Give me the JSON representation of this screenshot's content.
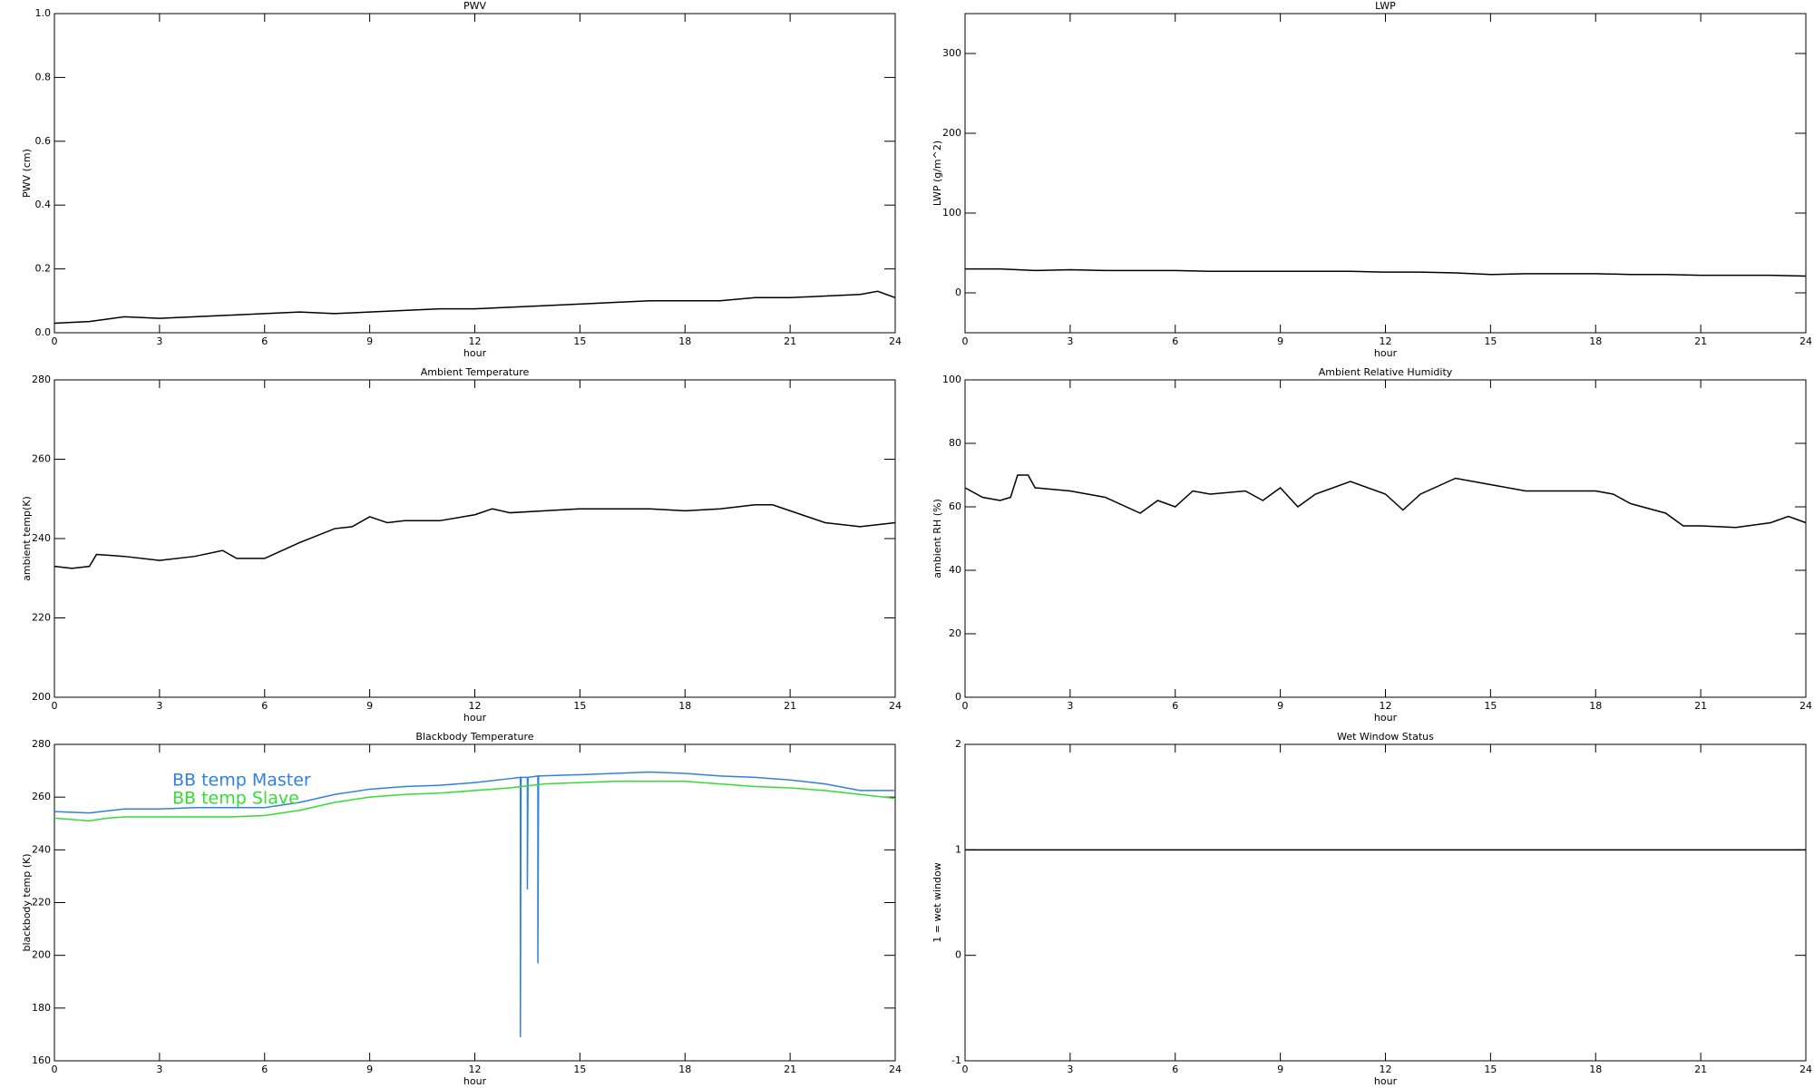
{
  "chart_data": [
    {
      "type": "line",
      "title": "PWV",
      "xlabel": "hour",
      "ylabel": "PWV (cm)",
      "xlim": [
        0,
        24
      ],
      "xticks": [
        0,
        3,
        6,
        9,
        12,
        15,
        18,
        21,
        24
      ],
      "ylim": [
        0,
        1
      ],
      "yticks": [
        {
          "value": 0,
          "label": "0.0"
        },
        0.2,
        0.4,
        0.6,
        0.8,
        {
          "value": 1,
          "label": "1.0"
        }
      ],
      "series": [
        {
          "color": "#000000",
          "x": [
            0,
            1,
            2,
            3,
            4,
            5,
            6,
            7,
            8,
            9,
            10,
            11,
            12,
            13,
            14,
            15,
            16,
            17,
            18,
            19,
            20,
            21,
            22,
            23,
            23.5,
            24
          ],
          "values": [
            0.03,
            0.035,
            0.05,
            0.045,
            0.05,
            0.055,
            0.06,
            0.065,
            0.06,
            0.065,
            0.07,
            0.075,
            0.075,
            0.08,
            0.085,
            0.09,
            0.095,
            0.1,
            0.1,
            0.1,
            0.11,
            0.11,
            0.115,
            0.12,
            0.13,
            0.11
          ]
        }
      ]
    },
    {
      "type": "line",
      "title": "LWP",
      "xlabel": "hour",
      "ylabel": "LWP (g/m^2)",
      "xlim": [
        0,
        24
      ],
      "xticks": [
        0,
        3,
        6,
        9,
        12,
        15,
        18,
        21,
        24
      ],
      "ylim": [
        -50,
        350
      ],
      "yticks": [
        0,
        100,
        200,
        300
      ],
      "series": [
        {
          "color": "#000000",
          "x": [
            0,
            1,
            2,
            3,
            4,
            5,
            6,
            7,
            8,
            9,
            10,
            11,
            12,
            13,
            14,
            15,
            16,
            17,
            18,
            19,
            20,
            21,
            22,
            23,
            24
          ],
          "values": [
            30,
            30,
            28,
            29,
            28,
            28,
            28,
            27,
            27,
            27,
            27,
            27,
            26,
            26,
            25,
            23,
            24,
            24,
            24,
            23,
            23,
            22,
            22,
            22,
            21
          ]
        }
      ]
    },
    {
      "type": "line",
      "title": "Ambient Temperature",
      "xlabel": "hour",
      "ylabel": "ambient temp(K)",
      "xlim": [
        0,
        24
      ],
      "xticks": [
        0,
        3,
        6,
        9,
        12,
        15,
        18,
        21,
        24
      ],
      "ylim": [
        200,
        280
      ],
      "yticks": [
        200,
        220,
        240,
        260,
        280
      ],
      "series": [
        {
          "color": "#000000",
          "x": [
            0,
            0.5,
            1,
            1.2,
            2,
            3,
            4,
            4.8,
            5.2,
            6,
            6.5,
            7,
            8,
            8.5,
            9,
            9.5,
            10,
            11,
            12,
            12.5,
            13,
            14,
            15,
            16,
            17,
            18,
            19,
            20,
            20.5,
            21,
            22,
            23,
            24
          ],
          "values": [
            233,
            232.5,
            233,
            236,
            235.5,
            234.5,
            235.5,
            237,
            235,
            235,
            237,
            239,
            242.5,
            243,
            245.5,
            244,
            244.5,
            244.5,
            246,
            247.5,
            246.5,
            247,
            247.5,
            247.5,
            247.5,
            247,
            247.5,
            248.5,
            248.5,
            247,
            244,
            243,
            244
          ]
        }
      ]
    },
    {
      "type": "line",
      "title": "Ambient Relative Humidity",
      "xlabel": "hour",
      "ylabel": "ambient RH (%)",
      "xlim": [
        0,
        24
      ],
      "xticks": [
        0,
        3,
        6,
        9,
        12,
        15,
        18,
        21,
        24
      ],
      "ylim": [
        0,
        100
      ],
      "yticks": [
        0,
        20,
        40,
        60,
        80,
        100
      ],
      "series": [
        {
          "color": "#000000",
          "x": [
            0,
            0.5,
            1,
            1.3,
            1.5,
            1.8,
            2,
            3,
            4,
            5,
            5.5,
            6,
            6.5,
            7,
            8,
            8.5,
            9,
            9.5,
            10,
            11,
            12,
            12.5,
            13,
            14,
            15,
            16,
            17,
            18,
            18.5,
            19,
            20,
            20.5,
            21,
            22,
            23,
            23.5,
            24
          ],
          "values": [
            66,
            63,
            62,
            63,
            70,
            70,
            66,
            65,
            63,
            58,
            62,
            60,
            65,
            64,
            65,
            62,
            66,
            60,
            64,
            68,
            64,
            59,
            64,
            69,
            67,
            65,
            65,
            65,
            64,
            61,
            58,
            54,
            54,
            53.5,
            55,
            57,
            55
          ]
        }
      ]
    },
    {
      "type": "line",
      "title": "Blackbody Temperature",
      "xlabel": "hour",
      "ylabel": "blackbody temp (K)",
      "xlim": [
        0,
        24
      ],
      "xticks": [
        0,
        3,
        6,
        9,
        12,
        15,
        18,
        21,
        24
      ],
      "ylim": [
        160,
        280
      ],
      "yticks": [
        160,
        180,
        200,
        220,
        240,
        260,
        280
      ],
      "legend": "upper left",
      "series": [
        {
          "name": "BB temp Master",
          "color": "#2f80e0",
          "x": [
            0,
            1,
            2,
            3,
            4,
            5,
            6,
            7,
            8,
            9,
            10,
            11,
            12,
            13,
            13.3,
            13.3,
            13.32,
            13.5,
            13.5,
            13.52,
            13.8,
            13.8,
            13.82,
            15,
            16,
            17,
            18,
            19,
            20,
            21,
            22,
            23,
            24
          ],
          "values": [
            254.5,
            254,
            255.5,
            255.5,
            256,
            256,
            256,
            258,
            261,
            263,
            264,
            264.5,
            265.5,
            267,
            267.5,
            169,
            267.5,
            267.5,
            225,
            267.5,
            268,
            197,
            268,
            268.5,
            269,
            269.5,
            269,
            268,
            267.5,
            266.5,
            265,
            262.5,
            262.5
          ]
        },
        {
          "name": "BB temp Slave",
          "color": "#33dd33",
          "x": [
            0,
            1,
            1.5,
            2,
            3,
            4,
            5,
            6,
            7,
            8,
            9,
            10,
            11,
            12,
            13,
            14,
            15,
            16,
            17,
            18,
            19,
            20,
            21,
            22,
            23,
            24
          ],
          "values": [
            252,
            251,
            252,
            252.5,
            252.5,
            252.5,
            252.5,
            253,
            255,
            258,
            260,
            261,
            261.5,
            262.5,
            263.5,
            265,
            265.5,
            266,
            266,
            266,
            265,
            264,
            263.5,
            262.5,
            261,
            259.5
          ]
        }
      ]
    },
    {
      "type": "line",
      "title": "Wet Window Status",
      "xlabel": "hour",
      "ylabel": "1 = wet window",
      "xlim": [
        0,
        24
      ],
      "xticks": [
        0,
        3,
        6,
        9,
        12,
        15,
        18,
        21,
        24
      ],
      "ylim": [
        -1,
        2
      ],
      "yticks": [
        -1,
        0,
        1,
        2
      ],
      "series": [
        {
          "color": "#000000",
          "x": [
            0,
            24
          ],
          "values": [
            1,
            1
          ]
        }
      ]
    }
  ]
}
